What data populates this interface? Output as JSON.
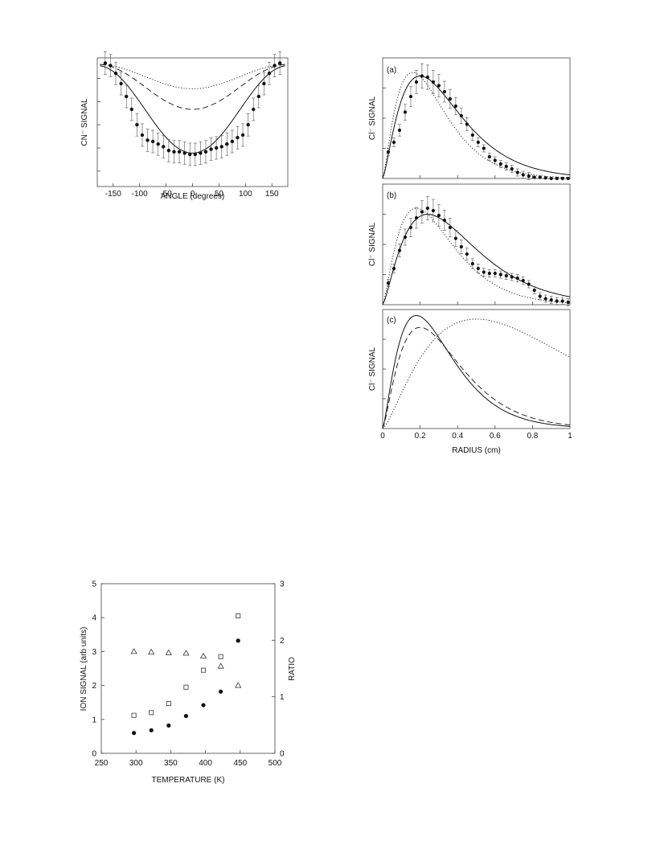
{
  "chart_data": [
    {
      "type": "scatter",
      "panel": "",
      "xlabel": "ANGLE (degrees)",
      "ylabel": "CN⁻ SIGNAL",
      "xlim": [
        -180,
        180
      ],
      "ylim": [
        0,
        1
      ],
      "xticks": [
        "-150",
        "-100",
        "-50",
        "0",
        "50",
        "100",
        "150"
      ],
      "series": [
        {
          "style": "points-with-errorbars",
          "x": [
            -165,
            -155,
            -145,
            -135,
            -125,
            -115,
            -105,
            -95,
            -85,
            -75,
            -65,
            -55,
            -45,
            -35,
            -25,
            -15,
            -5,
            5,
            15,
            25,
            35,
            45,
            55,
            65,
            75,
            85,
            95,
            105,
            115,
            125,
            135,
            145,
            155,
            165
          ],
          "values": [
            0.96,
            0.94,
            0.88,
            0.8,
            0.7,
            0.6,
            0.48,
            0.4,
            0.36,
            0.35,
            0.33,
            0.31,
            0.28,
            0.27,
            0.27,
            0.26,
            0.25,
            0.25,
            0.26,
            0.27,
            0.29,
            0.3,
            0.31,
            0.33,
            0.35,
            0.38,
            0.4,
            0.48,
            0.6,
            0.7,
            0.8,
            0.88,
            0.94,
            0.96
          ]
        },
        {
          "style": "solid",
          "curve": "cos",
          "min": 0.26,
          "max": 0.94
        },
        {
          "style": "dashed",
          "curve": "cos",
          "min": 0.6,
          "max": 0.95
        },
        {
          "style": "dotted",
          "curve": "cos",
          "min": 0.76,
          "max": 0.95
        }
      ]
    },
    {
      "type": "scatter",
      "panel": "(a)",
      "xlabel": "",
      "ylabel": "Cl⁻ SIGNAL",
      "xlim": [
        0,
        1
      ],
      "ylim": [
        0,
        1
      ],
      "series": [
        {
          "style": "points-with-errorbars",
          "x": [
            0.03,
            0.06,
            0.09,
            0.12,
            0.15,
            0.18,
            0.21,
            0.24,
            0.27,
            0.3,
            0.33,
            0.36,
            0.39,
            0.42,
            0.45,
            0.48,
            0.51,
            0.54,
            0.57,
            0.6,
            0.63,
            0.66,
            0.69,
            0.72,
            0.75,
            0.78,
            0.81,
            0.84,
            0.87,
            0.9,
            0.93,
            0.96,
            0.99
          ],
          "values": [
            0.22,
            0.3,
            0.4,
            0.55,
            0.68,
            0.8,
            0.85,
            0.84,
            0.8,
            0.77,
            0.72,
            0.66,
            0.6,
            0.52,
            0.45,
            0.36,
            0.3,
            0.25,
            0.18,
            0.15,
            0.12,
            0.1,
            0.08,
            0.05,
            0.03,
            0.02,
            0.01,
            0.01,
            0.005,
            0.0,
            0.0,
            0.0,
            0.0
          ]
        },
        {
          "style": "solid",
          "peak": 0.2,
          "width": 0.12,
          "height": 0.85
        },
        {
          "style": "dotted",
          "peak": 0.16,
          "width": 0.11,
          "height": 0.88
        }
      ]
    },
    {
      "type": "scatter",
      "panel": "(b)",
      "xlabel": "",
      "ylabel": "Cl⁻ SIGNAL",
      "xlim": [
        0,
        1
      ],
      "ylim": [
        0,
        1
      ],
      "series": [
        {
          "style": "points-with-errorbars",
          "x": [
            0.03,
            0.06,
            0.09,
            0.12,
            0.15,
            0.18,
            0.21,
            0.24,
            0.27,
            0.3,
            0.33,
            0.36,
            0.39,
            0.42,
            0.45,
            0.48,
            0.51,
            0.54,
            0.57,
            0.6,
            0.63,
            0.66,
            0.69,
            0.72,
            0.75,
            0.78,
            0.81,
            0.84,
            0.87,
            0.9,
            0.93,
            0.96,
            0.99
          ],
          "values": [
            0.18,
            0.3,
            0.45,
            0.56,
            0.64,
            0.72,
            0.77,
            0.8,
            0.78,
            0.74,
            0.7,
            0.64,
            0.55,
            0.48,
            0.42,
            0.34,
            0.3,
            0.27,
            0.26,
            0.26,
            0.25,
            0.24,
            0.23,
            0.22,
            0.2,
            0.17,
            0.12,
            0.07,
            0.05,
            0.04,
            0.03,
            0.03,
            0.02
          ]
        },
        {
          "style": "solid",
          "peak": 0.24,
          "width": 0.16,
          "height": 0.75
        },
        {
          "style": "dotted",
          "peak": 0.18,
          "width": 0.14,
          "height": 0.8
        }
      ]
    },
    {
      "type": "line",
      "panel": "(c)",
      "xlabel": "RADIUS (cm)",
      "ylabel": "Cl⁻ SIGNAL",
      "xlim": [
        0,
        1
      ],
      "ylim": [
        0,
        1
      ],
      "xticks": [
        "0",
        "0.2",
        "0.4",
        "0.6",
        "0.8",
        "1"
      ],
      "series": [
        {
          "style": "solid",
          "peak": 0.18,
          "width": 0.12,
          "height": 0.95
        },
        {
          "style": "dashed",
          "peak": 0.2,
          "width": 0.13,
          "height": 0.85
        },
        {
          "style": "dotted",
          "peak": 0.5,
          "width": 0.17,
          "height": 0.92
        }
      ]
    },
    {
      "type": "scatter",
      "panel": "",
      "xlabel": "TEMPERATURE (K)",
      "ylabel": "ION SIGNAL (arb units)",
      "y2label": "RATIO",
      "xlim": [
        250,
        500
      ],
      "ylim": [
        0,
        5
      ],
      "y2lim": [
        0,
        3
      ],
      "xticks": [
        "250",
        "300",
        "350",
        "400",
        "450",
        "500"
      ],
      "yticks": [
        "0",
        "1",
        "2",
        "3",
        "4",
        "5"
      ],
      "y2ticks": [
        "0",
        "1",
        "2",
        "3"
      ],
      "series": [
        {
          "marker": "filled-circle",
          "x": [
            297,
            322,
            347,
            372,
            397,
            422,
            447
          ],
          "values": [
            0.6,
            0.68,
            0.82,
            1.1,
            1.42,
            1.82,
            3.32
          ]
        },
        {
          "marker": "open-square",
          "x": [
            297,
            322,
            347,
            372,
            397,
            422,
            447
          ],
          "values": [
            1.12,
            1.2,
            1.47,
            1.95,
            2.45,
            2.85,
            4.05
          ]
        },
        {
          "marker": "open-triangle",
          "axis": "right",
          "x": [
            297,
            322,
            347,
            372,
            397,
            422,
            447
          ],
          "values": [
            1.8,
            1.79,
            1.78,
            1.77,
            1.72,
            1.54,
            1.2
          ]
        }
      ]
    }
  ]
}
